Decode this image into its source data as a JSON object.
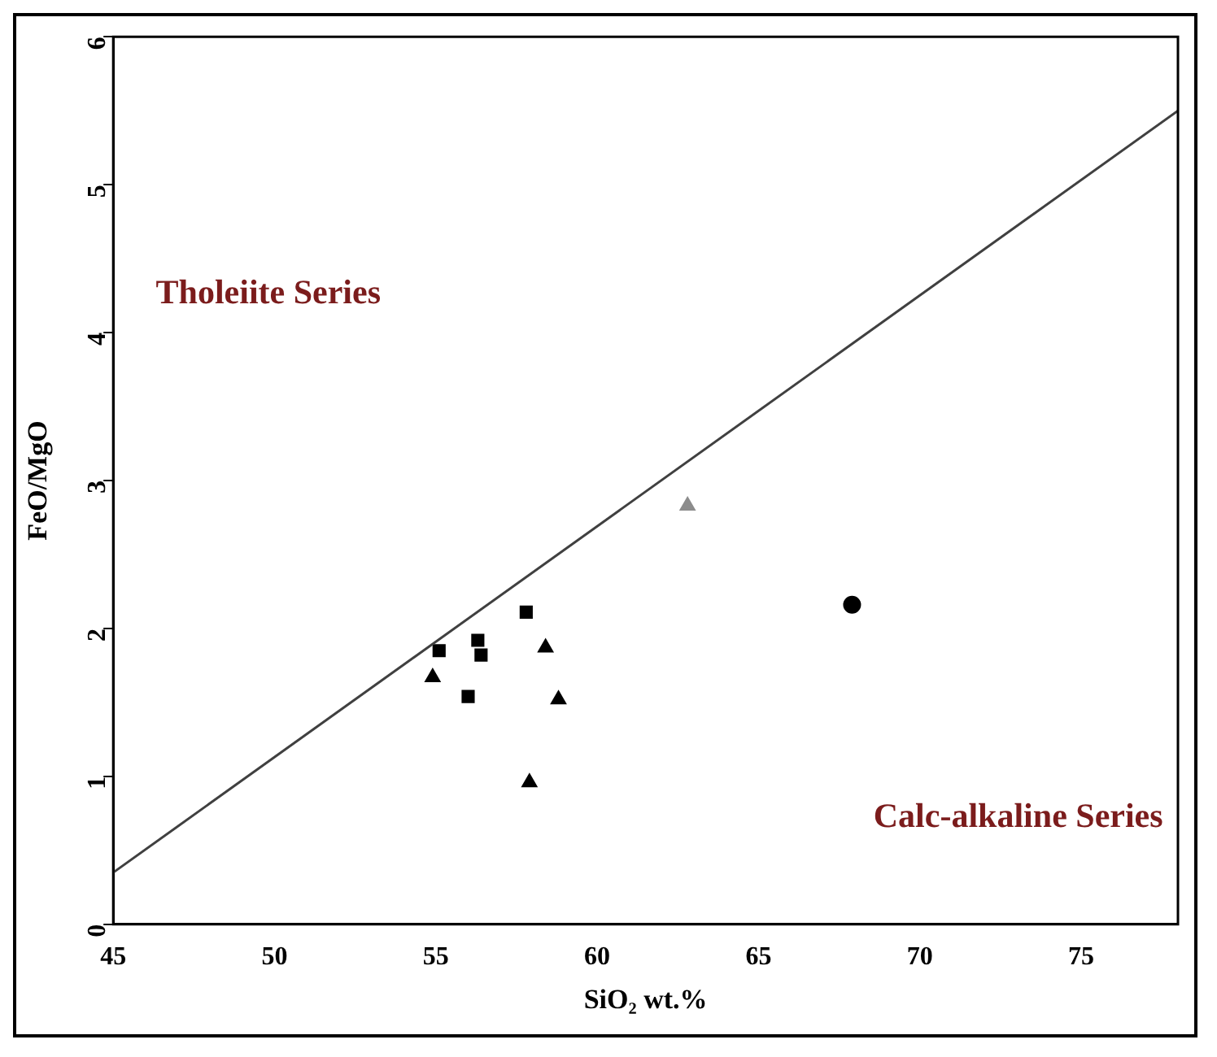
{
  "chart_data": {
    "type": "scatter",
    "xlabel": "SiO₂ wt.%",
    "ylabel": "FeO/MgO",
    "xlim": [
      45,
      78
    ],
    "xticks": [
      45,
      50,
      55,
      60,
      65,
      70,
      75
    ],
    "ylim": [
      0,
      6
    ],
    "yticks": [
      0,
      1,
      2,
      3,
      4,
      5,
      6
    ],
    "grid": false,
    "legend": false,
    "annotations": [
      "Tholeiite Series",
      "Calc-alkaline Series"
    ],
    "series": [
      {
        "type": "line",
        "color": "#404040",
        "x": [
          45,
          78
        ],
        "values": [
          0.35,
          5.5
        ],
        "marker": "none"
      },
      {
        "color": "#000000",
        "marker": "square",
        "x": [
          55.1,
          57.8,
          56.3,
          56.4,
          56.0
        ],
        "values": [
          1.85,
          2.11,
          1.92,
          1.82,
          1.54
        ]
      },
      {
        "color": "#000000",
        "marker": "triangle",
        "x": [
          54.9,
          58.4,
          58.8,
          57.9
        ],
        "values": [
          1.67,
          1.87,
          1.52,
          0.96
        ]
      },
      {
        "color": "#8c8c8c",
        "marker": "triangle",
        "x": [
          62.8
        ],
        "values": [
          2.83
        ]
      },
      {
        "color": "#000000",
        "marker": "circle",
        "x": [
          67.9
        ],
        "values": [
          2.16
        ]
      }
    ]
  }
}
